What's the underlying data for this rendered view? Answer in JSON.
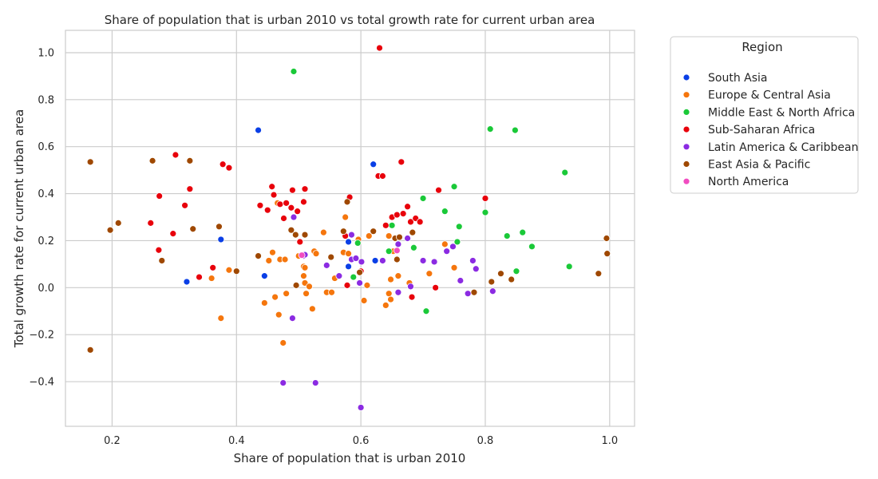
{
  "chart_data": {
    "type": "scatter",
    "title": "Share of population that is urban 2010 vs total growth rate for current urban area",
    "xlabel": "Share of population that is urban 2010",
    "ylabel": "Total growth rate for current urban area",
    "xlim": [
      0.125,
      1.04
    ],
    "ylim": [
      -0.59,
      1.095
    ],
    "x_ticks": [
      "0.2",
      "0.4",
      "0.6",
      "0.8",
      "1.0"
    ],
    "y_ticks": [
      "−0.4",
      "−0.2",
      "0.0",
      "0.2",
      "0.4",
      "0.6",
      "0.8",
      "1.0"
    ],
    "grid": true,
    "legend": {
      "title": "Region",
      "position": "outside-right"
    },
    "series": [
      {
        "name": "South Asia",
        "color": "#0a3fe6",
        "points": [
          [
            0.32,
            0.025
          ],
          [
            0.375,
            0.205
          ],
          [
            0.435,
            0.67
          ],
          [
            0.445,
            0.05
          ],
          [
            0.58,
            0.195
          ],
          [
            0.58,
            0.09
          ],
          [
            0.62,
            0.525
          ],
          [
            0.623,
            0.115
          ]
        ]
      },
      {
        "name": "Europe & Central Asia",
        "color": "#f5760d",
        "points": [
          [
            0.36,
            0.04
          ],
          [
            0.375,
            -0.13
          ],
          [
            0.388,
            0.075
          ],
          [
            0.445,
            -0.065
          ],
          [
            0.452,
            0.115
          ],
          [
            0.458,
            0.15
          ],
          [
            0.462,
            -0.04
          ],
          [
            0.466,
            0.36
          ],
          [
            0.468,
            -0.115
          ],
          [
            0.47,
            0.12
          ],
          [
            0.475,
            -0.235
          ],
          [
            0.478,
            0.12
          ],
          [
            0.48,
            -0.025
          ],
          [
            0.5,
            0.135
          ],
          [
            0.505,
            0.14
          ],
          [
            0.508,
            0.09
          ],
          [
            0.508,
            0.05
          ],
          [
            0.51,
            0.02
          ],
          [
            0.51,
            0.085
          ],
          [
            0.512,
            -0.025
          ],
          [
            0.517,
            0.005
          ],
          [
            0.522,
            -0.09
          ],
          [
            0.525,
            0.155
          ],
          [
            0.528,
            0.145
          ],
          [
            0.54,
            0.235
          ],
          [
            0.545,
            -0.02
          ],
          [
            0.553,
            -0.02
          ],
          [
            0.558,
            0.04
          ],
          [
            0.572,
            0.15
          ],
          [
            0.575,
            0.3
          ],
          [
            0.58,
            0.145
          ],
          [
            0.596,
            0.205
          ],
          [
            0.605,
            -0.055
          ],
          [
            0.61,
            0.01
          ],
          [
            0.613,
            0.22
          ],
          [
            0.64,
            -0.075
          ],
          [
            0.645,
            -0.025
          ],
          [
            0.645,
            0.22
          ],
          [
            0.648,
            0.035
          ],
          [
            0.648,
            -0.05
          ],
          [
            0.652,
            0.155
          ],
          [
            0.66,
            0.05
          ],
          [
            0.678,
            0.02
          ],
          [
            0.71,
            0.06
          ],
          [
            0.735,
            0.185
          ],
          [
            0.75,
            0.085
          ]
        ]
      },
      {
        "name": "Middle East & North Africa",
        "color": "#1ac938",
        "points": [
          [
            0.492,
            0.92
          ],
          [
            0.588,
            0.045
          ],
          [
            0.595,
            0.19
          ],
          [
            0.645,
            0.155
          ],
          [
            0.65,
            0.265
          ],
          [
            0.685,
            0.17
          ],
          [
            0.7,
            0.38
          ],
          [
            0.705,
            -0.1
          ],
          [
            0.735,
            0.325
          ],
          [
            0.75,
            0.43
          ],
          [
            0.755,
            0.195
          ],
          [
            0.758,
            0.26
          ],
          [
            0.8,
            0.32
          ],
          [
            0.808,
            0.675
          ],
          [
            0.835,
            0.22
          ],
          [
            0.848,
            0.67
          ],
          [
            0.85,
            0.07
          ],
          [
            0.86,
            0.235
          ],
          [
            0.875,
            0.175
          ],
          [
            0.928,
            0.49
          ],
          [
            0.935,
            0.09
          ]
        ]
      },
      {
        "name": "Sub-Saharan Africa",
        "color": "#e8000b",
        "points": [
          [
            0.262,
            0.275
          ],
          [
            0.275,
            0.16
          ],
          [
            0.276,
            0.39
          ],
          [
            0.298,
            0.23
          ],
          [
            0.302,
            0.565
          ],
          [
            0.317,
            0.35
          ],
          [
            0.325,
            0.42
          ],
          [
            0.34,
            0.045
          ],
          [
            0.362,
            0.085
          ],
          [
            0.378,
            0.525
          ],
          [
            0.388,
            0.51
          ],
          [
            0.438,
            0.35
          ],
          [
            0.45,
            0.33
          ],
          [
            0.457,
            0.43
          ],
          [
            0.46,
            0.395
          ],
          [
            0.47,
            0.355
          ],
          [
            0.476,
            0.295
          ],
          [
            0.48,
            0.36
          ],
          [
            0.488,
            0.34
          ],
          [
            0.49,
            0.415
          ],
          [
            0.498,
            0.325
          ],
          [
            0.502,
            0.195
          ],
          [
            0.508,
            0.365
          ],
          [
            0.51,
            0.42
          ],
          [
            0.575,
            0.22
          ],
          [
            0.578,
            0.01
          ],
          [
            0.582,
            0.385
          ],
          [
            0.6,
            0.07
          ],
          [
            0.628,
            0.475
          ],
          [
            0.63,
            1.02
          ],
          [
            0.635,
            0.475
          ],
          [
            0.64,
            0.265
          ],
          [
            0.65,
            0.3
          ],
          [
            0.658,
            0.31
          ],
          [
            0.665,
            0.535
          ],
          [
            0.668,
            0.315
          ],
          [
            0.675,
            0.345
          ],
          [
            0.68,
            0.28
          ],
          [
            0.682,
            -0.04
          ],
          [
            0.688,
            0.295
          ],
          [
            0.695,
            0.28
          ],
          [
            0.72,
            0.0
          ],
          [
            0.725,
            0.415
          ],
          [
            0.8,
            0.38
          ]
        ]
      },
      {
        "name": "Latin America & Caribbean",
        "color": "#8b2be2",
        "points": [
          [
            0.475,
            -0.405
          ],
          [
            0.49,
            -0.13
          ],
          [
            0.492,
            0.3
          ],
          [
            0.508,
            0.135
          ],
          [
            0.51,
            0.14
          ],
          [
            0.527,
            -0.405
          ],
          [
            0.545,
            0.095
          ],
          [
            0.565,
            0.05
          ],
          [
            0.585,
            0.12
          ],
          [
            0.585,
            0.225
          ],
          [
            0.592,
            0.125
          ],
          [
            0.598,
            0.02
          ],
          [
            0.6,
            -0.51
          ],
          [
            0.601,
            0.11
          ],
          [
            0.635,
            0.115
          ],
          [
            0.66,
            -0.02
          ],
          [
            0.66,
            0.185
          ],
          [
            0.675,
            0.21
          ],
          [
            0.68,
            0.005
          ],
          [
            0.7,
            0.115
          ],
          [
            0.718,
            0.11
          ],
          [
            0.738,
            0.155
          ],
          [
            0.748,
            0.175
          ],
          [
            0.76,
            0.03
          ],
          [
            0.772,
            -0.025
          ],
          [
            0.78,
            0.115
          ],
          [
            0.785,
            0.08
          ],
          [
            0.812,
            -0.015
          ]
        ]
      },
      {
        "name": "East Asia & Pacific",
        "color": "#9f4800",
        "points": [
          [
            0.165,
            0.535
          ],
          [
            0.165,
            -0.265
          ],
          [
            0.197,
            0.245
          ],
          [
            0.21,
            0.275
          ],
          [
            0.265,
            0.54
          ],
          [
            0.28,
            0.115
          ],
          [
            0.325,
            0.54
          ],
          [
            0.33,
            0.25
          ],
          [
            0.372,
            0.26
          ],
          [
            0.4,
            0.07
          ],
          [
            0.435,
            0.135
          ],
          [
            0.488,
            0.245
          ],
          [
            0.495,
            0.225
          ],
          [
            0.496,
            0.01
          ],
          [
            0.51,
            0.225
          ],
          [
            0.552,
            0.13
          ],
          [
            0.572,
            0.24
          ],
          [
            0.578,
            0.365
          ],
          [
            0.598,
            0.065
          ],
          [
            0.62,
            0.24
          ],
          [
            0.655,
            0.21
          ],
          [
            0.658,
            0.12
          ],
          [
            0.662,
            0.215
          ],
          [
            0.683,
            0.235
          ],
          [
            0.782,
            -0.02
          ],
          [
            0.81,
            0.025
          ],
          [
            0.825,
            0.06
          ],
          [
            0.842,
            0.035
          ],
          [
            0.982,
            0.06
          ],
          [
            0.995,
            0.21
          ],
          [
            0.996,
            0.145
          ]
        ]
      },
      {
        "name": "North America",
        "color": "#f14cc1",
        "points": [
          [
            0.505,
            0.138
          ],
          [
            0.658,
            0.158
          ]
        ]
      }
    ]
  }
}
